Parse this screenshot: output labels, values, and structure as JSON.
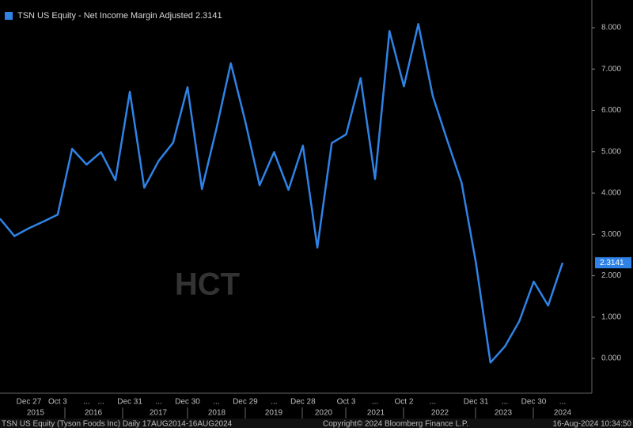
{
  "chart_data": {
    "type": "line",
    "series": [
      {
        "name": "TSN US Equity - Net Income Margin Adjusted",
        "color": "#2f83e6",
        "values": [
          3.38,
          2.96,
          3.15,
          3.31,
          3.48,
          5.07,
          4.69,
          4.99,
          4.31,
          6.45,
          4.13,
          4.78,
          5.22,
          6.56,
          4.1,
          5.55,
          7.14,
          5.74,
          4.19,
          4.99,
          4.08,
          5.15,
          2.68,
          5.21,
          5.42,
          6.78,
          4.34,
          7.92,
          6.58,
          8.09,
          6.35,
          5.28,
          4.25,
          2.3,
          -0.1,
          0.29,
          0.9,
          1.86,
          1.28,
          2.3141
        ]
      }
    ],
    "categories": [
      null,
      null,
      "Dec 27",
      null,
      "Oct 3",
      null,
      "...",
      "...",
      null,
      "Dec 31",
      null,
      "...",
      null,
      "Dec 30",
      null,
      "...",
      null,
      "Dec 29",
      null,
      "...",
      null,
      "Dec 28",
      null,
      null,
      "Oct 3",
      null,
      "...",
      null,
      "Oct 2",
      null,
      "...",
      null,
      null,
      "Dec 31",
      null,
      "...",
      null,
      "Dec 30",
      null,
      "..."
    ],
    "years": [
      "2015",
      "2016",
      "2017",
      "2018",
      "2019",
      "2020",
      "2021",
      "2022",
      "2023",
      "2024"
    ],
    "ylim": [
      -0.84,
      8.67
    ],
    "yticks": [
      {
        "value": 0,
        "label": "0.000"
      },
      {
        "value": 1,
        "label": "1.000"
      },
      {
        "value": 2,
        "label": "2.000"
      },
      {
        "value": 3,
        "label": "3.000"
      },
      {
        "value": 4,
        "label": "4.000"
      },
      {
        "value": 5,
        "label": "5.000"
      },
      {
        "value": 6,
        "label": "6.000"
      },
      {
        "value": 7,
        "label": "7.000"
      },
      {
        "value": 8,
        "label": "8.000"
      }
    ],
    "watermark": "HCT",
    "footer": [
      "TSN US Equity (Tyson Foods Inc)  Daily 17AUG2014-16AUG2024",
      "Copyright© 2024 Bloomberg Finance L.P.",
      "16-Aug-2024 10:34:50"
    ]
  }
}
